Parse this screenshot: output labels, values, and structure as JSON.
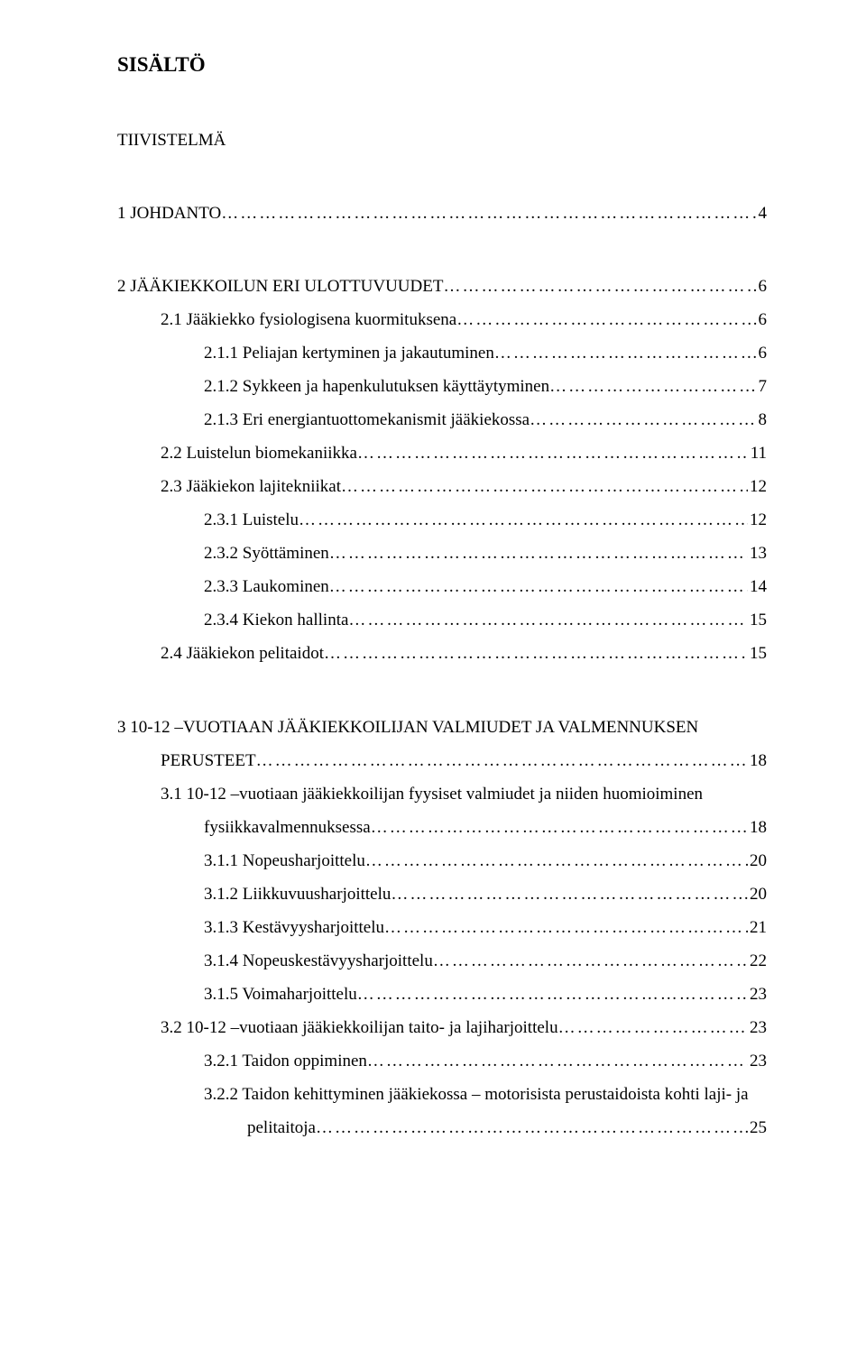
{
  "title": "SISÄLTÖ",
  "group1": {
    "l1": "TIIVISTELMÄ"
  },
  "group2": {
    "l1": "1   JOHDANTO",
    "p1": "4"
  },
  "group3": {
    "l1": "2   JÄÄKIEKKOILUN ERI ULOTTUVUUDET",
    "p1": "6",
    "l2": "2.1 Jääkiekko fysiologisena kuormituksena",
    "p2": "6",
    "l3": "2.1.1 Peliajan kertyminen ja jakautuminen",
    "p3": "6",
    "l4": "2.1.2 Sykkeen ja hapenkulutuksen käyttäytyminen",
    "p4": "7",
    "l5": "2.1.3 Eri energiantuottomekanismit jääkiekossa",
    "p5": "8",
    "l6": "2.2 Luistelun biomekaniikka",
    "p6": "11",
    "l7": "2.3 Jääkiekon lajitekniikat",
    "p7": "12",
    "l8": "2.3.1 Luistelu",
    "p8": "12",
    "l9": "2.3.2 Syöttäminen",
    "p9": "13",
    "l10": "2.3.3 Laukominen",
    "p10": "14",
    "l11": "2.3.4 Kiekon hallinta",
    "p11": "15",
    "l12": "2.4 Jääkiekon pelitaidot",
    "p12": "15"
  },
  "group4": {
    "l1a": "3   10-12 –VUOTIAAN JÄÄKIEKKOILIJAN VALMIUDET JA VALMENNUKSEN",
    "l1b": "PERUSTEET",
    "p1": "18",
    "l2a": "3.1 10-12 –vuotiaan jääkiekkoilijan fyysiset valmiudet ja niiden huomioiminen",
    "l2b": "fysiikkavalmennuksessa",
    "p2": "18",
    "l3": "3.1.1 Nopeusharjoittelu",
    "p3": "20",
    "l4": "3.1.2 Liikkuvuusharjoittelu",
    "p4": "20",
    "l5": "3.1.3 Kestävyysharjoittelu",
    "p5": "21",
    "l6": "3.1.4 Nopeuskestävyysharjoittelu",
    "p6": "22",
    "l7": "3.1.5 Voimaharjoittelu",
    "p7": "23",
    "l8": "3.2 10-12 –vuotiaan jääkiekkoilijan taito- ja lajiharjoittelu",
    "p8": "23",
    "l9": "3.2.1 Taidon oppiminen",
    "p9": "23",
    "l10a": "3.2.2 Taidon kehittyminen jääkiekossa – motorisista perustaidoista kohti laji- ja",
    "l10b": "pelitaitoja",
    "p10": "25"
  },
  "leader": "……………………………………………………………………………………………………………………………………………………………………"
}
